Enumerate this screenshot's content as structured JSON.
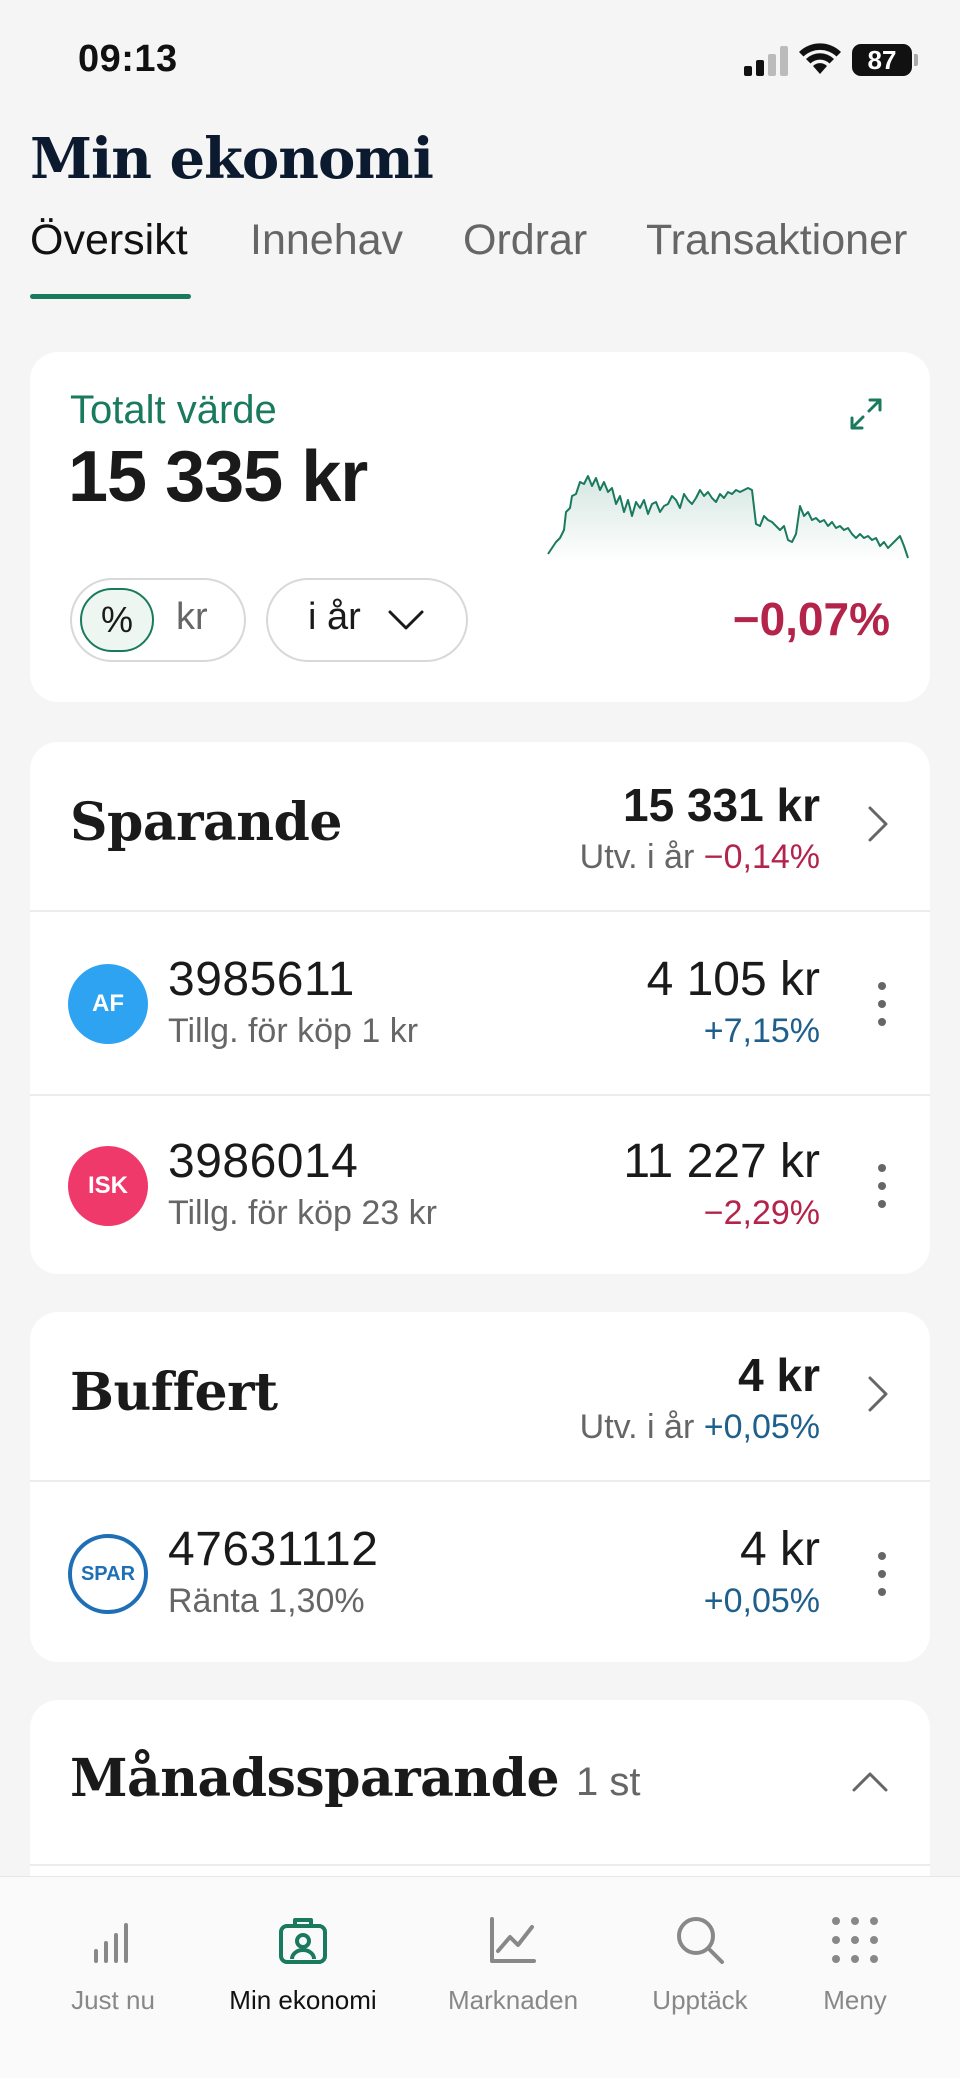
{
  "status_bar": {
    "time": "09:13",
    "battery": "87"
  },
  "page": {
    "title": "Min ekonomi"
  },
  "tabs": [
    {
      "label": "Översikt",
      "active": true
    },
    {
      "label": "Innehav",
      "active": false
    },
    {
      "label": "Ordrar",
      "active": false
    },
    {
      "label": "Transaktioner",
      "active": false
    }
  ],
  "total": {
    "label": "Totalt värde",
    "value": "15 335 kr",
    "toggle_percent": "%",
    "toggle_kr": "kr",
    "period": "i år",
    "change": "−0,07%",
    "expand_icon": "expand-icon",
    "chart_color": "#1a7a5e"
  },
  "sparande": {
    "title": "Sparande",
    "amount": "15 331 kr",
    "sub_label": "Utv. i år",
    "sub_change": "−0,14%",
    "accounts": [
      {
        "badge": "AF",
        "badge_color": "#2ea3f2",
        "number": "3985611",
        "sub": "Tillg. för köp 1 kr",
        "value": "4 105 kr",
        "change": "+7,15%"
      },
      {
        "badge": "ISK",
        "badge_color": "#f0396b",
        "number": "3986014",
        "sub": "Tillg. för köp 23 kr",
        "value": "11 227 kr",
        "change": "−2,29%"
      }
    ]
  },
  "buffert": {
    "title": "Buffert",
    "amount": "4 kr",
    "sub_label": "Utv. i år",
    "sub_change": "+0,05%",
    "accounts": [
      {
        "badge": "SPAR",
        "badge_color": "#1e6fb5",
        "number": "47631112",
        "sub": "Ränta 1,30%",
        "value": "4 kr",
        "change": "+0,05%"
      }
    ]
  },
  "manadssparande": {
    "title": "Månadssparande",
    "count": "1 st"
  },
  "nav": [
    {
      "label": "Just nu",
      "icon": "bar-chart-icon",
      "active": false
    },
    {
      "label": "Min ekonomi",
      "icon": "briefcase-icon",
      "active": true
    },
    {
      "label": "Marknaden",
      "icon": "line-chart-icon",
      "active": false
    },
    {
      "label": "Upptäck",
      "icon": "search-icon",
      "active": false
    },
    {
      "label": "Meny",
      "icon": "grid-menu-icon",
      "active": false
    }
  ],
  "colors": {
    "accent": "#1a7a5e",
    "negative": "#b3234a",
    "positive": "#1e5f8c"
  }
}
